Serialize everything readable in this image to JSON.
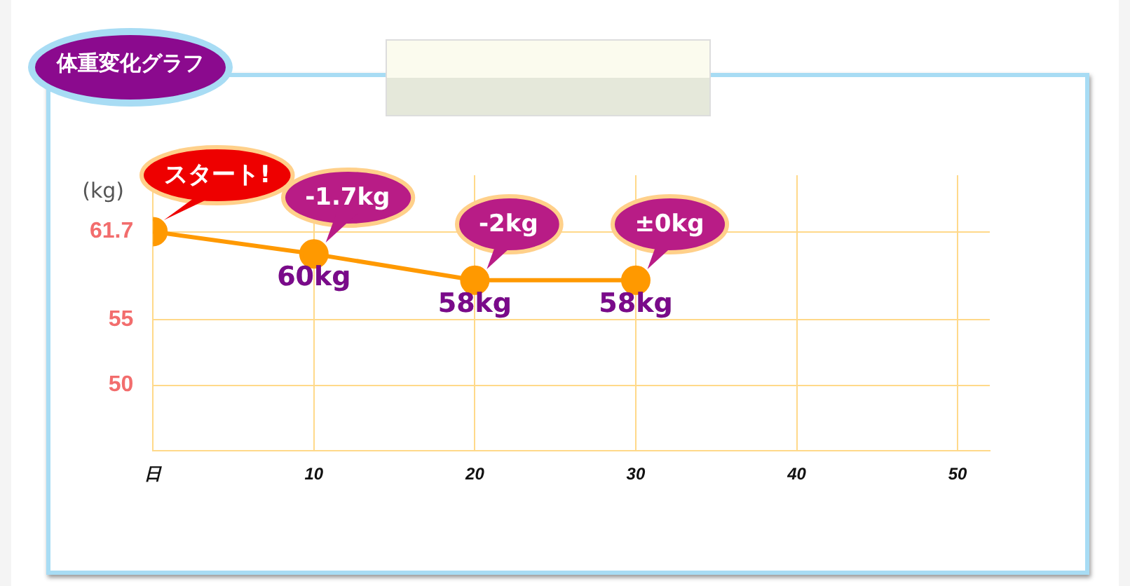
{
  "chart_data": {
    "type": "line",
    "title": "体重変化グラフ",
    "ylabel": "(kg)",
    "x": [
      0,
      10,
      20,
      30
    ],
    "series": [
      {
        "color": "#ff9900",
        "values": [
          61.7,
          60,
          58,
          58
        ],
        "value_labels": [
          null,
          "60kg",
          "58kg",
          "58kg"
        ]
      }
    ],
    "xlim": [
      0,
      52
    ],
    "xticks": [
      {
        "value": 0,
        "label": "日"
      },
      10,
      20,
      30,
      40,
      50
    ],
    "ylim": [
      45,
      66
    ],
    "yticks": [
      50,
      55,
      61.7
    ],
    "grid": true,
    "legend": false,
    "marker": "circle",
    "line_style": "solid",
    "annotations": [
      {
        "text": "スタート!",
        "x": 0,
        "y": 61.7
      },
      {
        "text": "-1.7kg",
        "x": 10,
        "y": 60
      },
      {
        "text": "-2kg",
        "x": 20,
        "y": 58
      },
      {
        "text": "±0kg",
        "x": 30,
        "y": 58
      }
    ]
  }
}
